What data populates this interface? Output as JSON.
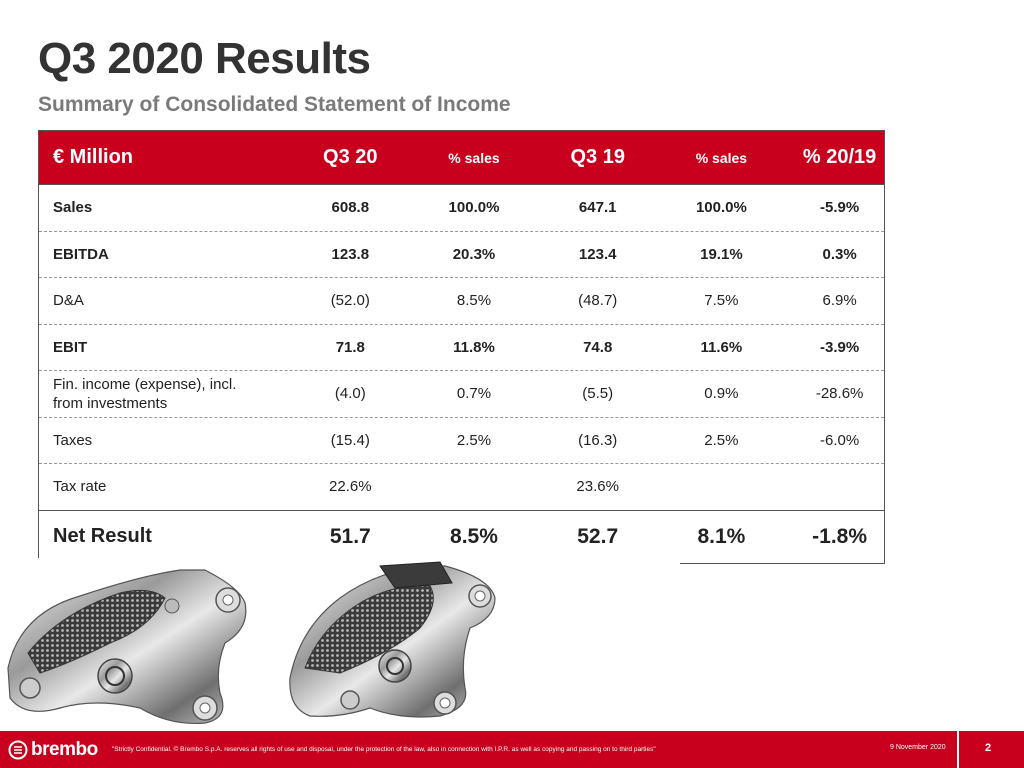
{
  "header": {
    "title": "Q3 2020 Results",
    "subtitle": "Summary of Consolidated Statement of Income"
  },
  "table": {
    "columns": [
      "€ Million",
      "Q3 20",
      "% sales",
      "Q3 19",
      "% sales",
      "% 20/19"
    ],
    "rows": [
      {
        "label": "Sales",
        "q3_20": "608.8",
        "pct_sales_20": "100.0%",
        "q3_19": "647.1",
        "pct_sales_19": "100.0%",
        "change": "-5.9%"
      },
      {
        "label": "EBITDA",
        "q3_20": "123.8",
        "pct_sales_20": "20.3%",
        "q3_19": "123.4",
        "pct_sales_19": "19.1%",
        "change": "0.3%"
      },
      {
        "label": "D&A",
        "q3_20": "(52.0)",
        "pct_sales_20": "8.5%",
        "q3_19": "(48.7)",
        "pct_sales_19": "7.5%",
        "change": "6.9%"
      },
      {
        "label": "EBIT",
        "q3_20": "71.8",
        "pct_sales_20": "11.8%",
        "q3_19": "74.8",
        "pct_sales_19": "11.6%",
        "change": "-3.9%"
      },
      {
        "label": "Fin. income (expense), incl. from investments",
        "q3_20": "(4.0)",
        "pct_sales_20": "0.7%",
        "q3_19": "(5.5)",
        "pct_sales_19": "0.9%",
        "change": "-28.6%"
      },
      {
        "label": "Taxes",
        "q3_20": "(15.4)",
        "pct_sales_20": "2.5%",
        "q3_19": "(16.3)",
        "pct_sales_19": "2.5%",
        "change": "-6.0%"
      },
      {
        "label": "Tax rate",
        "q3_20": "22.6%",
        "pct_sales_20": "",
        "q3_19": "23.6%",
        "pct_sales_19": "",
        "change": ""
      },
      {
        "label": "Net Result",
        "q3_20": "51.7",
        "pct_sales_20": "8.5%",
        "q3_19": "52.7",
        "pct_sales_19": "8.1%",
        "change": "-1.8%"
      }
    ]
  },
  "images": {
    "left_caliper": "brake-caliper-photo",
    "right_caliper": "brake-caliper-photo"
  },
  "footer": {
    "logo": "brembo",
    "disclaimer": "\"Strictly Confidential. © Brembo S.p.A. reserves all rights of use and disposal, under the protection of the law, also in connection with I.P.R. as well as copying and passing on to third parties\"",
    "date": "9 November 2020",
    "page_number": "2"
  },
  "colors": {
    "brand_red": "#c8001e",
    "title_gray": "#333333",
    "subtitle_gray": "#7a7a7a"
  }
}
